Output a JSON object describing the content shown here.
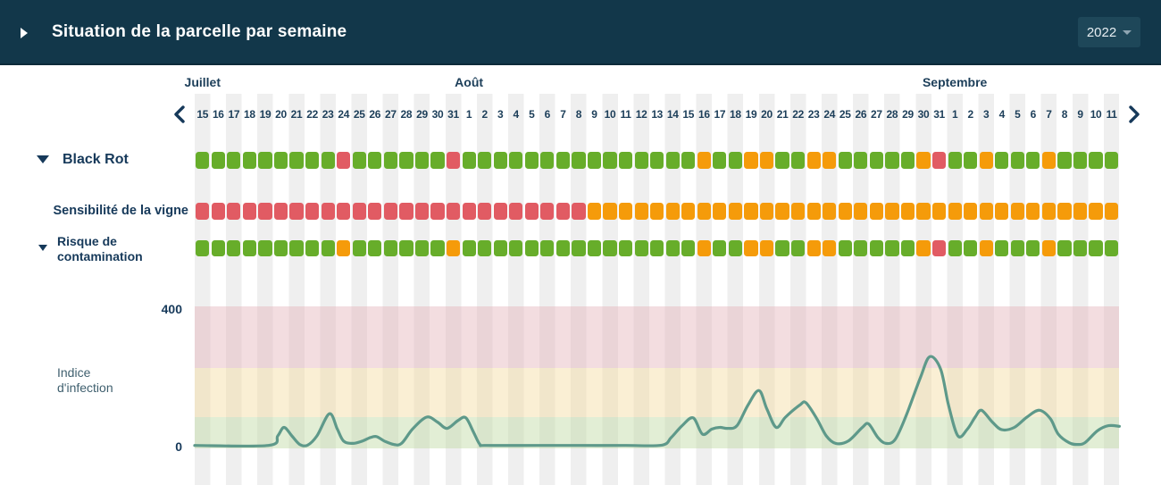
{
  "header": {
    "title": "Situation de la parcelle par semaine",
    "year": "2022"
  },
  "timeline": {
    "months": [
      {
        "label": "Juillet",
        "start_day": 0,
        "num_days": 17
      },
      {
        "label": "Août",
        "start_day": 17,
        "num_days": 31
      },
      {
        "label": "Septembre",
        "start_day": 48,
        "num_days": 11
      }
    ],
    "day_labels": [
      "15",
      "16",
      "17",
      "18",
      "19",
      "20",
      "21",
      "22",
      "23",
      "24",
      "25",
      "26",
      "27",
      "28",
      "29",
      "30",
      "31",
      "1",
      "2",
      "3",
      "4",
      "5",
      "6",
      "7",
      "8",
      "9",
      "10",
      "11",
      "12",
      "13",
      "14",
      "15",
      "16",
      "17",
      "18",
      "19",
      "20",
      "21",
      "22",
      "23",
      "24",
      "25",
      "26",
      "27",
      "28",
      "29",
      "30",
      "31",
      "1",
      "2",
      "3",
      "4",
      "5",
      "6",
      "7",
      "8",
      "9",
      "10",
      "11"
    ],
    "prev_icon": "chevron-left",
    "next_icon": "chevron-right"
  },
  "risk_rows": [
    {
      "id": "black-rot",
      "label": "Black Rot",
      "expandable": true,
      "statuses": "gggggggggrggggggrgggggggggggggggoggooggoogggggorggogggogggg"
    },
    {
      "id": "sensibilite",
      "label": "Sensibilité de la vigne",
      "expandable": false,
      "statuses": "rrrrrrrrrrrrrrrrrrrrrrrrroooooooooooooooooooooooooooooooooo"
    },
    {
      "id": "risque",
      "label": "Risque de contamination",
      "label_lines": [
        "Risque de",
        "contamination"
      ],
      "expandable": true,
      "statuses": "gggggggggoggggggogggggggggggggggoggooggoogggggorggogggogggg"
    }
  ],
  "status_colors": {
    "g": "#67ad2a",
    "o": "#f59b0a",
    "r": "#e15b63"
  },
  "chart_data": {
    "type": "line",
    "title": "",
    "ylabel": "Indice d'infection",
    "ylabel_lines": [
      "Indice",
      "d'infection"
    ],
    "xlabel": "",
    "yticks": [
      0,
      400
    ],
    "ylim": [
      0,
      410
    ],
    "x_unit": "days (0 = 15 juillet 2022, 59 = 11 septembre 2022)",
    "grid": false,
    "legend": "none",
    "line_color": "#5e998a",
    "bands": [
      {
        "name": "low",
        "range": [
          0,
          86
        ],
        "color": "#bfd9a2"
      },
      {
        "name": "medium",
        "range": [
          86,
          230
        ],
        "color": "#f4dca0"
      },
      {
        "name": "high",
        "range": [
          230,
          410
        ],
        "color": "#e4b3bb"
      }
    ],
    "series": [
      {
        "name": "Indice d'infection",
        "points": [
          [
            0,
            2
          ],
          [
            4.7,
            2
          ],
          [
            5.3,
            30
          ],
          [
            5.7,
            55
          ],
          [
            6.2,
            30
          ],
          [
            6.7,
            5
          ],
          [
            7.2,
            3
          ],
          [
            7.8,
            30
          ],
          [
            8.6,
            95
          ],
          [
            9.1,
            50
          ],
          [
            9.5,
            15
          ],
          [
            10.1,
            8
          ],
          [
            10.7,
            15
          ],
          [
            11.2,
            25
          ],
          [
            11.6,
            28
          ],
          [
            12.1,
            15
          ],
          [
            12.7,
            5
          ],
          [
            13.2,
            8
          ],
          [
            13.9,
            50
          ],
          [
            14.8,
            85
          ],
          [
            15.5,
            70
          ],
          [
            16.1,
            52
          ],
          [
            16.8,
            75
          ],
          [
            17.3,
            83
          ],
          [
            17.8,
            40
          ],
          [
            18.2,
            5
          ],
          [
            18.6,
            2
          ],
          [
            21.8,
            2
          ],
          [
            24.6,
            2
          ],
          [
            27.5,
            2
          ],
          [
            29.8,
            3
          ],
          [
            30.4,
            25
          ],
          [
            31.1,
            60
          ],
          [
            31.8,
            83
          ],
          [
            32.4,
            35
          ],
          [
            33,
            50
          ],
          [
            33.5,
            55
          ],
          [
            34,
            52
          ],
          [
            34.6,
            60
          ],
          [
            35.3,
            120
          ],
          [
            36,
            163
          ],
          [
            36.5,
            110
          ],
          [
            37.1,
            55
          ],
          [
            37.7,
            85
          ],
          [
            38.6,
            120
          ],
          [
            39,
            127
          ],
          [
            39.7,
            80
          ],
          [
            40.3,
            30
          ],
          [
            40.9,
            8
          ],
          [
            41.7,
            15
          ],
          [
            42.6,
            55
          ],
          [
            43,
            65
          ],
          [
            43.6,
            25
          ],
          [
            44.1,
            8
          ],
          [
            44.7,
            20
          ],
          [
            45.4,
            90
          ],
          [
            46.3,
            200
          ],
          [
            46.9,
            262
          ],
          [
            47.6,
            225
          ],
          [
            48.1,
            120
          ],
          [
            48.7,
            30
          ],
          [
            49.3,
            50
          ],
          [
            49.8,
            85
          ],
          [
            50.2,
            105
          ],
          [
            50.9,
            70
          ],
          [
            51.5,
            48
          ],
          [
            52.3,
            55
          ],
          [
            53.1,
            85
          ],
          [
            53.9,
            105
          ],
          [
            54.6,
            80
          ],
          [
            55.1,
            35
          ],
          [
            55.8,
            10
          ],
          [
            56.3,
            5
          ],
          [
            56.8,
            10
          ],
          [
            57.6,
            45
          ],
          [
            58.3,
            60
          ],
          [
            59,
            58
          ]
        ]
      }
    ]
  }
}
